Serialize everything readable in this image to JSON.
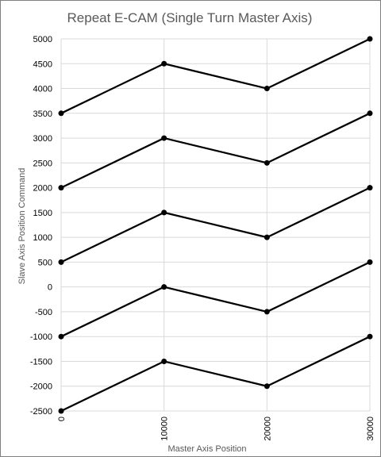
{
  "chart_data": {
    "type": "line",
    "title": "Repeat E-CAM (Single Turn Master Axis)",
    "xlabel": "Master Axis Position",
    "ylabel": "Slave Axis Position Command",
    "xlim": [
      0,
      30000
    ],
    "ylim": [
      -2500,
      5000
    ],
    "x_ticks": [
      0,
      10000,
      20000,
      30000
    ],
    "y_ticks": [
      5000,
      4500,
      4000,
      3500,
      3000,
      2500,
      2000,
      1500,
      1000,
      500,
      0,
      -500,
      -1000,
      -1500,
      -2000,
      -2500
    ],
    "x": [
      0,
      10000,
      20000,
      30000
    ],
    "series": [
      {
        "values": [
          3500,
          4500,
          4000,
          5000
        ]
      },
      {
        "values": [
          2000,
          3000,
          2500,
          3500
        ]
      },
      {
        "values": [
          500,
          1500,
          1000,
          2000
        ]
      },
      {
        "values": [
          -1000,
          0,
          -500,
          500
        ]
      },
      {
        "values": [
          -2500,
          -1500,
          -2000,
          -1000
        ]
      }
    ],
    "grid": true,
    "legend": "none",
    "line_color": "#000000",
    "grid_color": "#d9d9d9"
  }
}
